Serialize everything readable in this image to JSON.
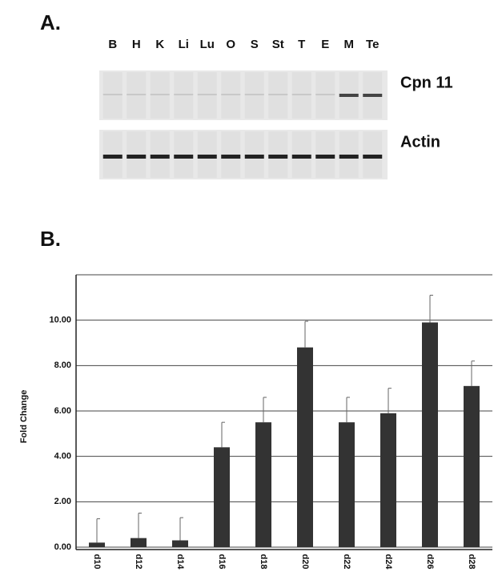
{
  "panel_a": {
    "label": "A.",
    "lanes": [
      "B",
      "H",
      "K",
      "Li",
      "Lu",
      "O",
      "S",
      "St",
      "T",
      "E",
      "M",
      "Te"
    ],
    "rows": [
      "Cpn 11",
      "Actin"
    ]
  },
  "chart_data": {
    "type": "bar",
    "panel_label": "B.",
    "y_label": "Fold Change",
    "categories": [
      "d10",
      "d12",
      "d14",
      "d16",
      "d18",
      "d20",
      "d22",
      "d24",
      "d26",
      "d28"
    ],
    "values": [
      0.2,
      0.4,
      0.3,
      4.4,
      5.5,
      8.8,
      5.5,
      5.9,
      9.9,
      7.1
    ],
    "errors": [
      1.05,
      1.1,
      1.0,
      1.1,
      1.1,
      1.15,
      1.1,
      1.1,
      1.2,
      1.1
    ],
    "color": "#333333",
    "ylim": [
      0,
      12
    ],
    "yticks": [
      {
        "value": 0,
        "label": "0.00"
      },
      {
        "value": 2,
        "label": "2.00"
      },
      {
        "value": 4,
        "label": "4.00"
      },
      {
        "value": 6,
        "label": "6.00"
      },
      {
        "value": 8,
        "label": "8.00"
      },
      {
        "value": 10,
        "label": "10.00"
      }
    ],
    "grid": true
  }
}
